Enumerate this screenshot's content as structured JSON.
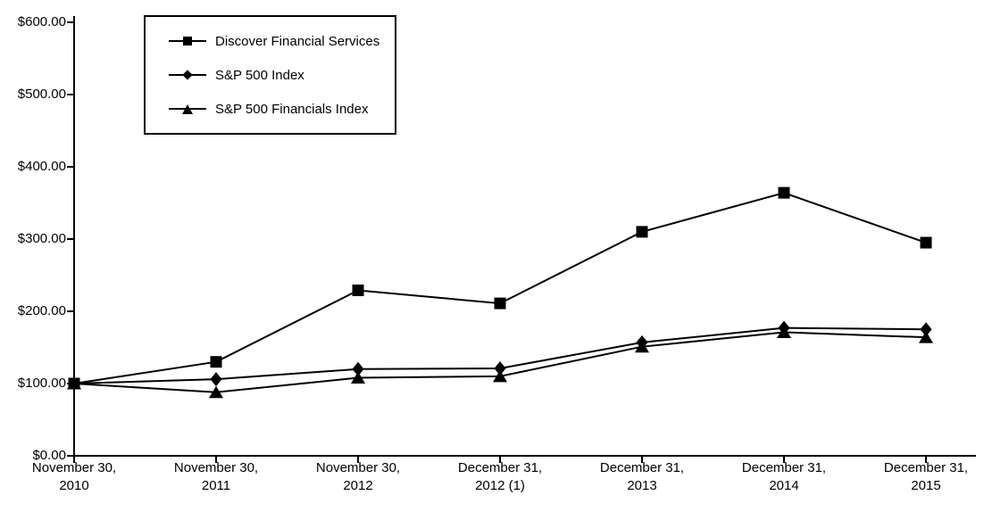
{
  "chart_data": {
    "type": "line",
    "title": "",
    "xlabel": "",
    "ylabel": "",
    "categories": [
      "November 30, 2010",
      "November 30, 2011",
      "November 30, 2012",
      "December 31, 2012 (1)",
      "December 31, 2013",
      "December 31, 2014",
      "December 31, 2015"
    ],
    "series": [
      {
        "name": "Discover Financial Services",
        "marker": "square",
        "values": [
          100,
          130,
          229,
          211,
          310,
          364,
          295
        ]
      },
      {
        "name": "S&P 500 Index",
        "marker": "diamond",
        "values": [
          100,
          106,
          120,
          121,
          157,
          177,
          175
        ]
      },
      {
        "name": "S&P 500 Financials Index",
        "marker": "triangle",
        "values": [
          100,
          88,
          108,
          110,
          151,
          171,
          164
        ]
      }
    ],
    "ylim": [
      0,
      600
    ],
    "y_tick_step": 100,
    "y_tick_labels": [
      "$600.00",
      "$500.00",
      "$400.00",
      "$300.00",
      "$200.00",
      "$100.00",
      "$0.00"
    ],
    "grid": false,
    "legend_position": "top-left",
    "line_color": "#000000",
    "marker_color": "#000000",
    "background_color": "#ffffff",
    "text_color": "#000000"
  }
}
